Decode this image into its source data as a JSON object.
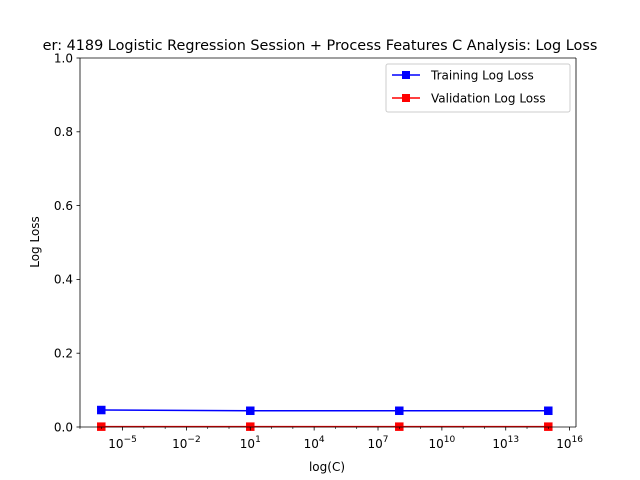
{
  "chart_data": {
    "type": "line",
    "title": "er: 4189 Logistic Regression Session + Process Features C Analysis: Log Loss",
    "xlabel": "log(C)",
    "ylabel": "Log Loss",
    "x_scale": "log",
    "xlim": [
      1e-07,
      2e+16
    ],
    "ylim": [
      0,
      1.0
    ],
    "x": [
      1e-06,
      10,
      100000000.0,
      1000000000000000.0
    ],
    "y_ticks": [
      0.0,
      0.2,
      0.4,
      0.6,
      0.8,
      1.0
    ],
    "y_tick_labels": [
      "0.0",
      "0.2",
      "0.4",
      "0.6",
      "0.8",
      "1.0"
    ],
    "x_ticks": [
      {
        "exp": -5,
        "label": "10",
        "sup": "−5"
      },
      {
        "exp": -2,
        "label": "10",
        "sup": "−2"
      },
      {
        "exp": 1,
        "label": "10",
        "sup": "1"
      },
      {
        "exp": 4,
        "label": "10",
        "sup": "4"
      },
      {
        "exp": 7,
        "label": "10",
        "sup": "7"
      },
      {
        "exp": 10,
        "label": "10",
        "sup": "10"
      },
      {
        "exp": 13,
        "label": "10",
        "sup": "13"
      },
      {
        "exp": 16,
        "label": "10",
        "sup": "16"
      }
    ],
    "grid": false,
    "legend_position": "top-right",
    "series": [
      {
        "name": "Training Log Loss",
        "color": "#0000ff",
        "marker": "square",
        "values": [
          0.046,
          0.044,
          0.044,
          0.044
        ]
      },
      {
        "name": "Validation Log Loss",
        "color": "#ff0000",
        "marker": "square",
        "values": [
          0.001,
          0.001,
          0.001,
          0.001
        ]
      }
    ]
  }
}
